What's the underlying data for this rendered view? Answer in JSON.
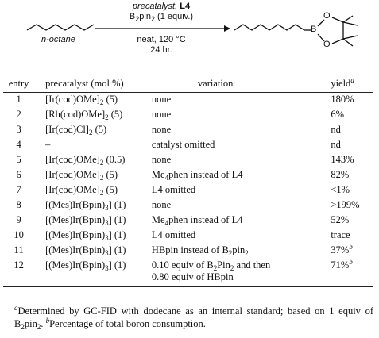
{
  "scheme": {
    "reagent_line1": "precatalyst, ",
    "reagent_ligand": "L4",
    "reagent_line2_pre": "B",
    "reagent_line2_sub1": "2",
    "reagent_line2_mid": "pin",
    "reagent_line2_sub2": "2",
    "reagent_line2_post": " (1 equiv.)",
    "cond_line1": "neat, 120 °C",
    "cond_line2": "24 hr.",
    "substrate_label": "n-octane",
    "atom_b": "B",
    "atom_o_top": "O",
    "atom_o_bottom": "O"
  },
  "table": {
    "headers": {
      "entry": "entry",
      "precatalyst": "precatalyst (mol %)",
      "variation": "variation",
      "yield": "yield",
      "yield_note": "a"
    },
    "rows": [
      {
        "entry": "1",
        "cat": [
          "[Ir(cod)OMe]",
          "2",
          " (5)"
        ],
        "var": [
          "none"
        ],
        "yield": "180%",
        "note": ""
      },
      {
        "entry": "2",
        "cat": [
          "[Rh(cod)OMe]",
          "2",
          " (5)"
        ],
        "var": [
          "none"
        ],
        "yield": "6%",
        "note": ""
      },
      {
        "entry": "3",
        "cat": [
          "[Ir(cod)Cl]",
          "2",
          " (5)"
        ],
        "var": [
          "none"
        ],
        "yield": "nd",
        "note": ""
      },
      {
        "entry": "4",
        "cat": [
          "–",
          "",
          ""
        ],
        "var": [
          "catalyst omitted"
        ],
        "yield": "nd",
        "note": ""
      },
      {
        "entry": "5",
        "cat": [
          "[Ir(cod)OMe]",
          "2",
          " (0.5)"
        ],
        "var": [
          "none"
        ],
        "yield": "143%",
        "note": ""
      },
      {
        "entry": "6",
        "cat": [
          "[Ir(cod)OMe]",
          "2",
          " (5)"
        ],
        "var": [
          "Me",
          "4",
          "phen instead of L4"
        ],
        "yield": "82%",
        "note": ""
      },
      {
        "entry": "7",
        "cat": [
          "[Ir(cod)OMe]",
          "2",
          " (5)"
        ],
        "var": [
          "L4 omitted"
        ],
        "yield": "<1%",
        "note": ""
      },
      {
        "entry": "8",
        "cat": [
          "[(Mes)Ir(Bpin)",
          "3",
          "] (1)"
        ],
        "var": [
          "none"
        ],
        "yield": ">199%",
        "note": ""
      },
      {
        "entry": "9",
        "cat": [
          "[(Mes)Ir(Bpin)",
          "3",
          "] (1)"
        ],
        "var": [
          "Me",
          "4",
          "phen instead of L4"
        ],
        "yield": "52%",
        "note": ""
      },
      {
        "entry": "10",
        "cat": [
          "[(Mes)Ir(Bpin)",
          "3",
          "] (1)"
        ],
        "var": [
          "L4 omitted"
        ],
        "yield": "trace",
        "note": ""
      },
      {
        "entry": "11",
        "cat": [
          "[(Mes)Ir(Bpin)",
          "3",
          "] (1)"
        ],
        "var": [
          "HBpin instead of B",
          "2",
          "pin",
          "2",
          ""
        ],
        "yield": "37%",
        "note": "b"
      },
      {
        "entry": "12",
        "cat": [
          "[(Mes)Ir(Bpin)",
          "3",
          "] (1)"
        ],
        "var": [
          "0.10 equiv of B",
          "2",
          "Pin",
          "2",
          " and then"
        ],
        "var2": "0.80 equiv of HBpin",
        "yield": "71%",
        "note": "b"
      }
    ]
  },
  "footnote": {
    "a_mark": "a",
    "a_text": "Determined by GC-FID with dodecane as an internal standard; based on 1 equiv of B",
    "a_sub1": "2",
    "a_mid": "pin",
    "a_sub2": "2",
    "a_end": ". ",
    "b_mark": "b",
    "b_text": "Percentage of total boron consumption."
  }
}
